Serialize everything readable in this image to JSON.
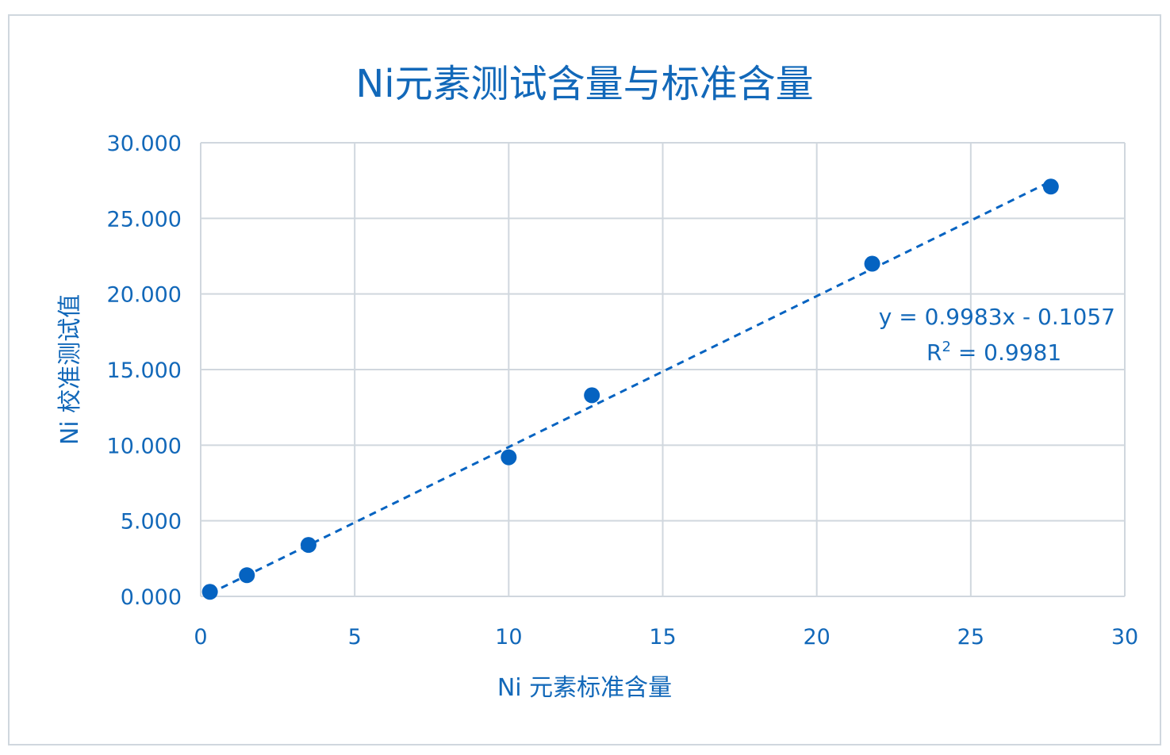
{
  "chart_data": {
    "type": "scatter",
    "title": "Ni元素测试含量与标准含量",
    "xlabel": "Ni 元素标准含量",
    "ylabel": "Ni 校准测试值",
    "x_ticks": [
      "0",
      "5",
      "10",
      "15",
      "20",
      "25",
      "30"
    ],
    "y_ticks": [
      "0.000",
      "5.000",
      "10.000",
      "15.000",
      "20.000",
      "25.000",
      "30.000"
    ],
    "xlim": [
      0,
      30
    ],
    "ylim": [
      0,
      30
    ],
    "grid": true,
    "series": [
      {
        "x": [
          0.3,
          1.5,
          3.5,
          10.0,
          12.7,
          21.8,
          27.6
        ],
        "y": [
          0.3,
          1.4,
          3.4,
          9.2,
          13.3,
          22.0,
          27.1
        ]
      }
    ],
    "trendline": {
      "type": "linear",
      "slope": 0.9983,
      "intercept": -0.1057,
      "x_range": [
        0.3,
        27.6
      ],
      "equation": "y = 0.9983x - 0.1057",
      "r_squared_label": "R",
      "r_squared_superscript": "2",
      "r_squared_value": " = 0.9981"
    },
    "colors": {
      "marker": "#0563c1",
      "text": "#1268b9",
      "grid": "#d0d7de",
      "trendline": "#0563c1"
    }
  }
}
